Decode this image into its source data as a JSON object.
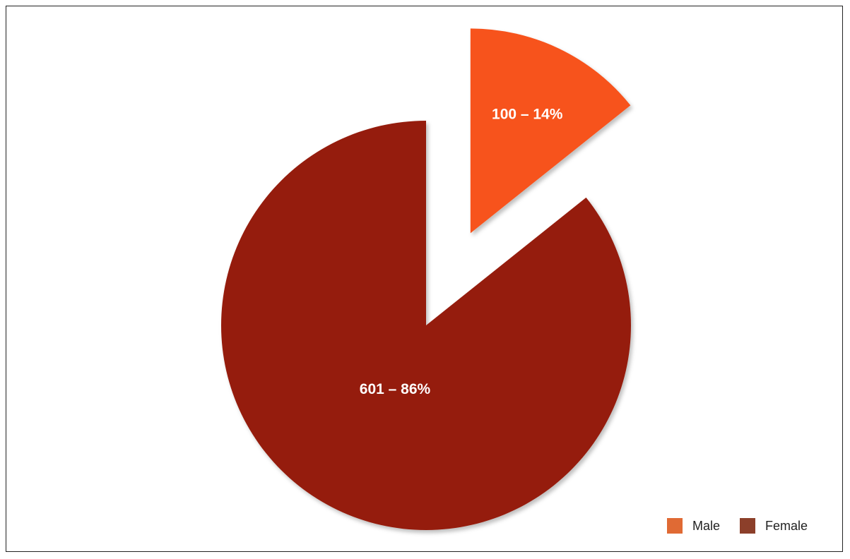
{
  "chart_data": {
    "type": "pie",
    "categories": [
      "Male",
      "Female"
    ],
    "values": [
      100,
      601
    ],
    "percentages": [
      14,
      86
    ],
    "slice_labels": [
      "100 – 14%",
      "601 – 86%"
    ],
    "exploded": [
      true,
      false
    ],
    "start": "12 o'clock, clockwise",
    "colors": {
      "slices": [
        "#f7531c",
        "#951d0b"
      ],
      "legend": [
        "#e06a34",
        "#8c3f2a"
      ]
    },
    "legend": {
      "placement": "bottom-right",
      "entries": [
        "Male",
        "Female"
      ]
    }
  }
}
